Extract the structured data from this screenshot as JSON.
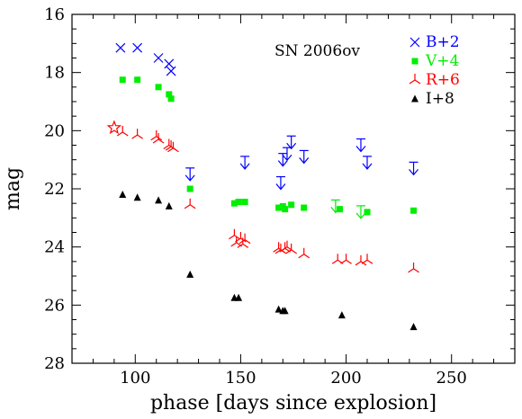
{
  "chart_data": {
    "type": "scatter",
    "annotation": "SN 2006ov",
    "xlabel": "phase [days since explosion]",
    "ylabel": "mag",
    "xlim": [
      70,
      280
    ],
    "ylim": [
      16,
      28
    ],
    "y_inverted": true,
    "xticks": [
      100,
      150,
      200,
      250
    ],
    "yticks": [
      16,
      18,
      20,
      22,
      24,
      26,
      28
    ],
    "grid": false,
    "legend_position": "top-right",
    "series": [
      {
        "name": "B+2",
        "color": "#0000ff",
        "marker": "cross",
        "points": [
          [
            93,
            17.15
          ],
          [
            101,
            17.15
          ],
          [
            111,
            17.5
          ],
          [
            116,
            17.7
          ],
          [
            117,
            17.95
          ]
        ]
      },
      {
        "name": "B+2 limits",
        "color": "#0000ff",
        "marker": "down-arrow",
        "points": [
          [
            126,
            21.5
          ],
          [
            152,
            21.1
          ],
          [
            169,
            21.8
          ],
          [
            170,
            21.0
          ],
          [
            172,
            20.8
          ],
          [
            174,
            20.4
          ],
          [
            180,
            20.9
          ],
          [
            207,
            20.5
          ],
          [
            210,
            21.1
          ],
          [
            232,
            21.3
          ]
        ]
      },
      {
        "name": "V+4",
        "color": "#00ee00",
        "marker": "square",
        "points": [
          [
            94,
            18.25
          ],
          [
            101,
            18.25
          ],
          [
            111,
            18.5
          ],
          [
            116,
            18.75
          ],
          [
            117,
            18.9
          ],
          [
            126,
            22.0
          ],
          [
            147,
            22.5
          ],
          [
            149,
            22.45
          ],
          [
            152,
            22.45
          ],
          [
            168,
            22.65
          ],
          [
            170,
            22.6
          ],
          [
            171,
            22.7
          ],
          [
            174,
            22.55
          ],
          [
            180,
            22.65
          ],
          [
            197,
            22.7
          ],
          [
            210,
            22.8
          ],
          [
            232,
            22.75
          ]
        ]
      },
      {
        "name": "V+4 limits",
        "color": "#00ee00",
        "marker": "down-arrow",
        "points": [
          [
            195,
            22.6
          ],
          [
            207,
            22.8
          ]
        ]
      },
      {
        "name": "R+6",
        "color": "#ff0000",
        "marker": "tri",
        "points": [
          [
            94,
            20.05
          ],
          [
            101,
            20.15
          ],
          [
            110,
            20.2
          ],
          [
            111,
            20.3
          ],
          [
            116,
            20.5
          ],
          [
            117,
            20.55
          ],
          [
            118,
            20.6
          ],
          [
            126,
            22.55
          ],
          [
            147,
            23.6
          ],
          [
            148,
            23.85
          ],
          [
            150,
            23.7
          ],
          [
            151,
            23.9
          ],
          [
            152,
            23.75
          ],
          [
            168,
            24.05
          ],
          [
            169,
            24.1
          ],
          [
            171,
            24.05
          ],
          [
            172,
            24.0
          ],
          [
            174,
            24.1
          ],
          [
            180,
            24.25
          ],
          [
            196,
            24.45
          ],
          [
            200,
            24.45
          ],
          [
            207,
            24.5
          ],
          [
            210,
            24.45
          ],
          [
            232,
            24.75
          ]
        ]
      },
      {
        "name": "R+6 peak",
        "color": "#ff0000",
        "marker": "star",
        "points": [
          [
            90,
            19.9
          ]
        ]
      },
      {
        "name": "I+8",
        "color": "#000000",
        "marker": "triangle",
        "points": [
          [
            94,
            22.2
          ],
          [
            101,
            22.3
          ],
          [
            111,
            22.4
          ],
          [
            116,
            22.6
          ],
          [
            126,
            24.95
          ],
          [
            147,
            25.75
          ],
          [
            149,
            25.75
          ],
          [
            168,
            26.15
          ],
          [
            170,
            26.2
          ],
          [
            171,
            26.2
          ],
          [
            198,
            26.35
          ],
          [
            232,
            26.75
          ]
        ]
      }
    ],
    "legend": [
      {
        "label": "B+2",
        "color": "#0000ff",
        "marker": "cross"
      },
      {
        "label": "V+4",
        "color": "#00ee00",
        "marker": "square"
      },
      {
        "label": "R+6",
        "color": "#ff0000",
        "marker": "tri"
      },
      {
        "label": "I+8",
        "color": "#000000",
        "marker": "triangle"
      }
    ]
  }
}
